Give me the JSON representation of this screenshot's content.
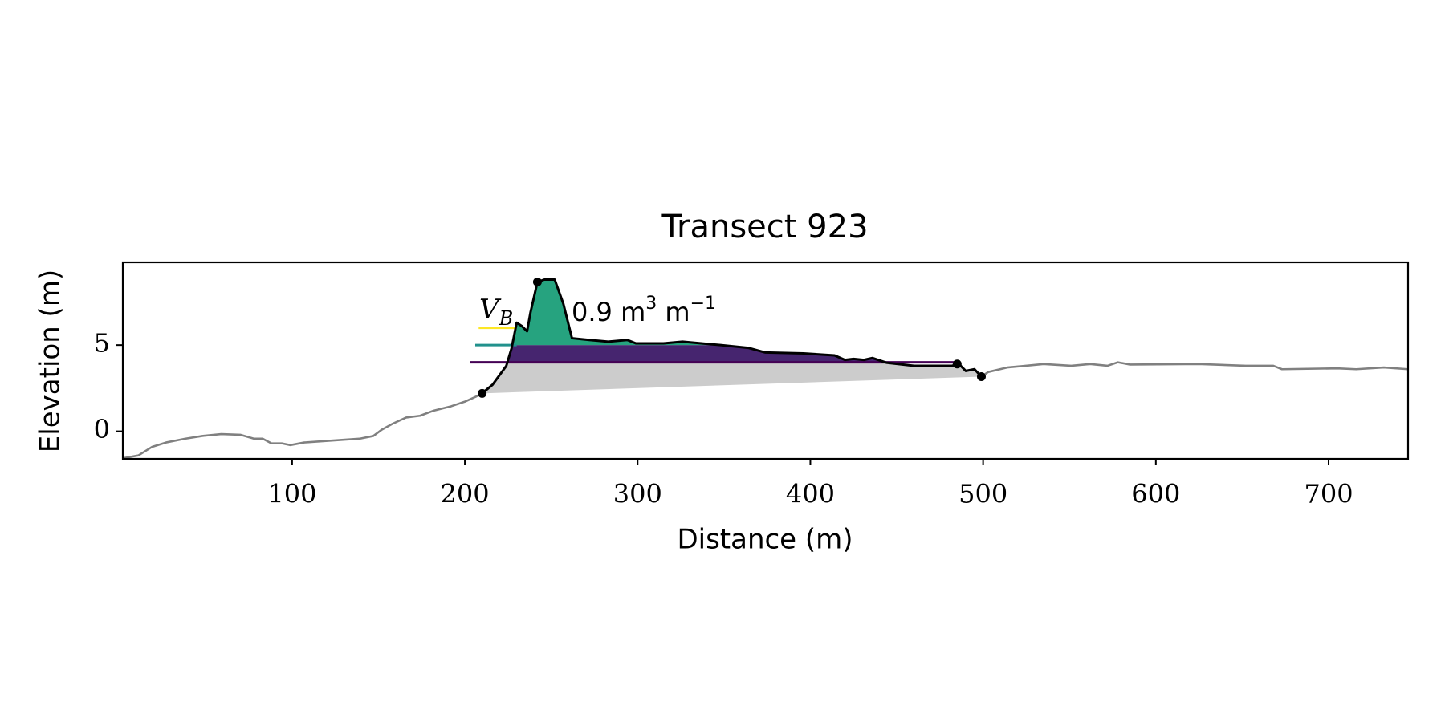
{
  "chart_data": {
    "type": "profile",
    "title": "Transect 923",
    "x_label": "Distance (m)",
    "y_label": "Elevation (m)",
    "xlim": [
      2,
      746
    ],
    "ylim": [
      -1.6,
      9.8
    ],
    "xticks": [
      100,
      200,
      300,
      400,
      500,
      600,
      700
    ],
    "yticks": [
      0,
      5
    ],
    "series": [
      {
        "color": "#808080",
        "x": [
          2,
          11,
          19,
          27,
          38,
          48,
          59,
          70,
          78,
          83,
          88,
          94,
          99,
          107,
          123,
          139,
          147,
          152,
          158,
          166,
          174,
          182,
          192,
          200,
          206,
          210,
          null,
          499,
          503,
          514,
          535,
          551,
          562,
          572,
          578,
          585,
          625,
          652,
          668,
          673,
          705,
          716,
          732,
          746
        ],
        "values": [
          -1.56,
          -1.4,
          -0.9,
          -0.65,
          -0.43,
          -0.27,
          -0.16,
          -0.2,
          -0.43,
          -0.43,
          -0.7,
          -0.7,
          -0.8,
          -0.65,
          -0.54,
          -0.43,
          -0.27,
          0.1,
          0.43,
          0.8,
          0.9,
          1.2,
          1.45,
          1.72,
          1.99,
          2.2,
          null,
          3.17,
          3.44,
          3.7,
          3.9,
          3.8,
          3.9,
          3.8,
          4.0,
          3.87,
          3.9,
          3.8,
          3.8,
          3.6,
          3.65,
          3.6,
          3.7,
          3.6
        ]
      },
      {
        "color": "#000000",
        "dune": true,
        "x": [
          210,
          216,
          224,
          227,
          230,
          233,
          236,
          238,
          242,
          246,
          252,
          257,
          262,
          272,
          283,
          294,
          299,
          315,
          326,
          348,
          364,
          374,
          396,
          414,
          420,
          425,
          431,
          436,
          444,
          460,
          482,
          486,
          490,
          495,
          499
        ],
        "values": [
          2.2,
          2.7,
          3.8,
          4.8,
          6.3,
          6.1,
          5.8,
          6.9,
          8.66,
          8.8,
          8.8,
          7.4,
          5.4,
          5.3,
          5.2,
          5.3,
          5.1,
          5.1,
          5.2,
          5.0,
          4.84,
          4.57,
          4.52,
          4.4,
          4.14,
          4.2,
          4.14,
          4.25,
          3.98,
          3.8,
          3.8,
          3.9,
          3.5,
          3.6,
          3.17
        ]
      }
    ],
    "points": {
      "color": "#000000",
      "x": [
        210,
        242,
        485,
        499
      ],
      "values": [
        2.2,
        8.66,
        3.9,
        3.17
      ]
    },
    "levels": [
      {
        "value": 6.0,
        "xrange": [
          208,
          230
        ],
        "color": "#fde725"
      },
      {
        "value": 5.0,
        "xrange": [
          206,
          230
        ],
        "color": "#21918c",
        "fill": "#26a37f"
      },
      {
        "value": 4.0,
        "xrange": [
          203,
          485
        ],
        "color": "#440154",
        "fill": "#46256f"
      }
    ],
    "fill_below": "#cccccc",
    "annotation": {
      "symbol": "V",
      "subscript": "B",
      "text": "0.9 m",
      "sup1": "3",
      "text2": " m",
      "sup2": "−1"
    }
  }
}
